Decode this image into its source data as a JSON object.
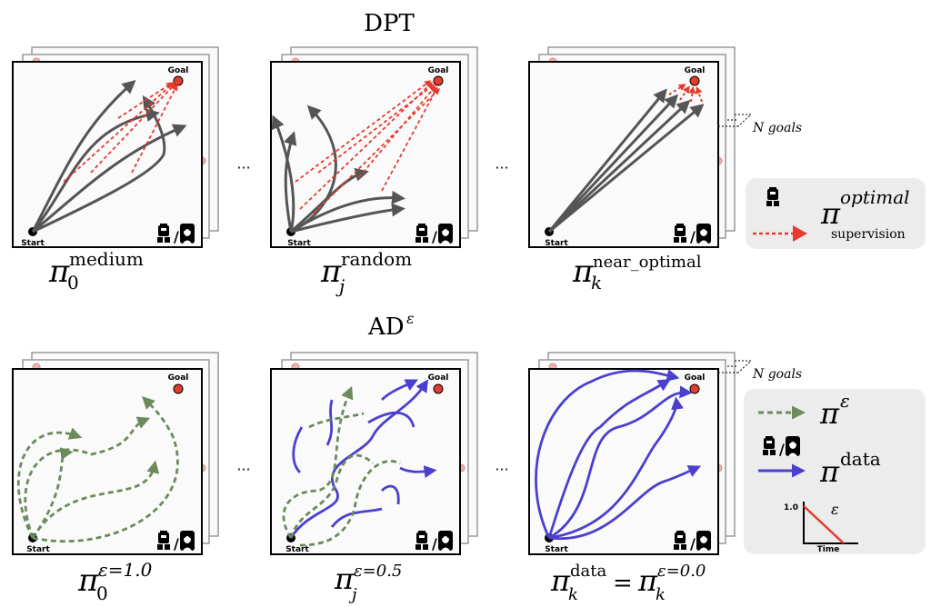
{
  "top": {
    "title": "DPT",
    "panels": [
      {
        "goal": "Goal",
        "start": "Start",
        "pi_sub": "0",
        "pi_sup": "medium"
      },
      {
        "goal": "Goal",
        "start": "Start",
        "pi_sub": "j",
        "pi_sup": "random"
      },
      {
        "goal": "Goal",
        "start": "Start",
        "pi_sub": "k",
        "pi_sup": "near_optimal"
      }
    ],
    "n_goals_label": "N goals",
    "legend": {
      "pi_sup": "optimal",
      "sub_label": "supervision"
    }
  },
  "bottom": {
    "title": "AD",
    "title_sup": "ε",
    "panels": [
      {
        "goal": "Goal",
        "start": "Start",
        "pi_sub": "0",
        "pi_sup": "ε=1.0"
      },
      {
        "goal": "Goal",
        "start": "Start",
        "pi_sub": "j",
        "pi_sup": "ε=0.5"
      },
      {
        "goal": "Goal",
        "start": "Start",
        "pi_sub": "k",
        "pi_sup": "data",
        "eq_sub": "k",
        "eq_sup": "ε=0.0"
      }
    ],
    "n_goals_label": "N goals",
    "legend": {
      "eps_sup": "ε",
      "data_sup": "data",
      "chart_y": "1.0",
      "chart_eps": "ε",
      "chart_x": "Time"
    }
  },
  "ellipsis": "···",
  "pi": "π",
  "equals": "=",
  "slash": "/",
  "colors": {
    "gray": "#555555",
    "red": "#e53b2e",
    "green": "#6c8a5c",
    "blue": "#4b3fcf",
    "legend_bg": "#ececec"
  }
}
